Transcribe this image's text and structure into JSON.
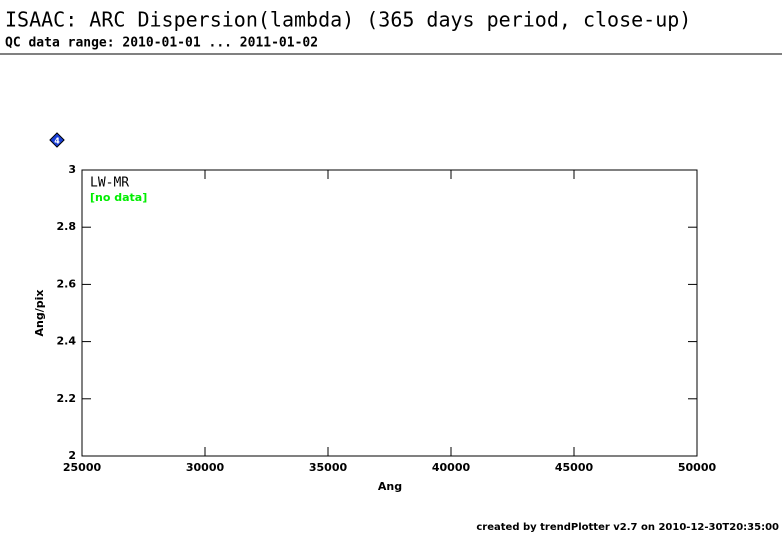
{
  "chart_data": {
    "type": "scatter",
    "title": "ISAAC: ARC Dispersion(lambda) (365 days period, close-up)",
    "subtitle": "QC data range: 2010-01-01 ... 2011-01-02",
    "badge": "4",
    "panel_label": "LW-MR",
    "annotation": "[no data]",
    "annotation_color": "#00ee00",
    "x_label": "Ang",
    "y_label": "Ang/pix",
    "xlim": [
      25000,
      50000
    ],
    "xticks": [
      25000,
      30000,
      35000,
      40000,
      45000,
      50000
    ],
    "ylim": [
      2,
      3
    ],
    "yticks": [
      2,
      2.2,
      2.4,
      2.6,
      2.8,
      3
    ],
    "footer": "created by trendPlotter v2.7 on 2010-12-30T20:35:00"
  }
}
